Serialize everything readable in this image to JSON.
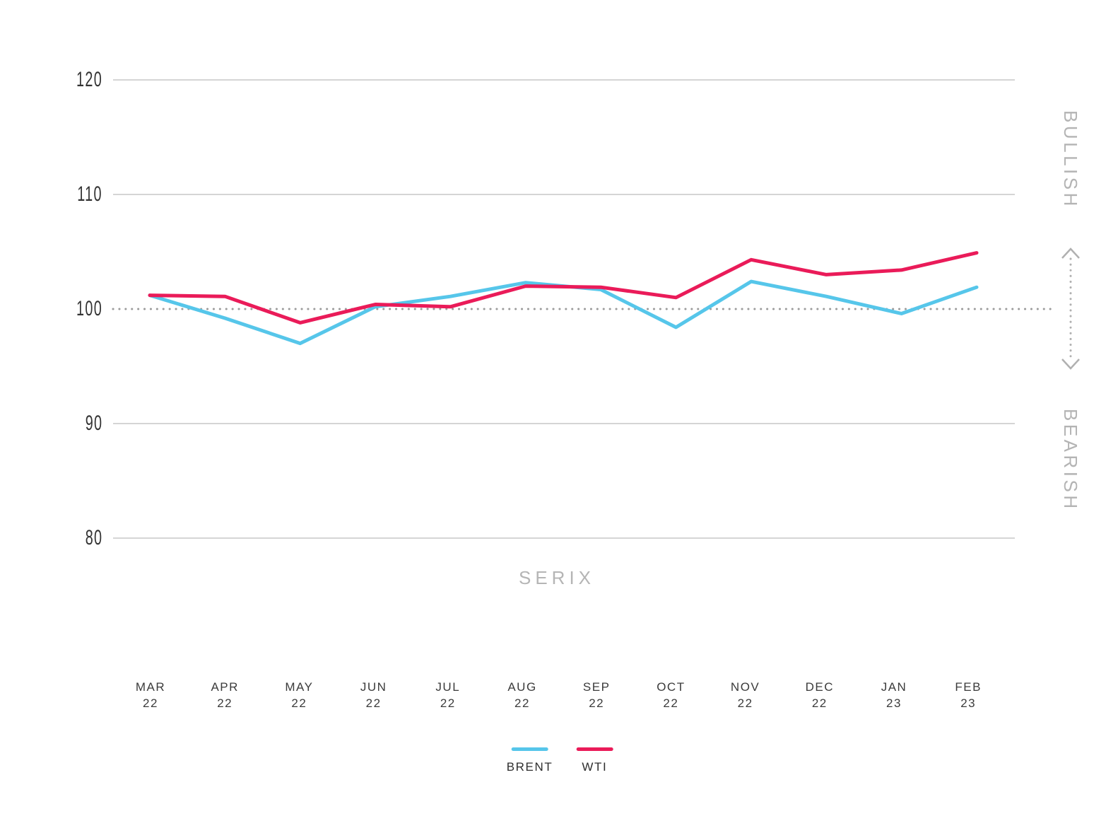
{
  "chart_data": {
    "type": "line",
    "title": "SERIX",
    "categories": [
      {
        "month": "MAR",
        "year": "22"
      },
      {
        "month": "APR",
        "year": "22"
      },
      {
        "month": "MAY",
        "year": "22"
      },
      {
        "month": "JUN",
        "year": "22"
      },
      {
        "month": "JUL",
        "year": "22"
      },
      {
        "month": "AUG",
        "year": "22"
      },
      {
        "month": "SEP",
        "year": "22"
      },
      {
        "month": "OCT",
        "year": "22"
      },
      {
        "month": "NOV",
        "year": "22"
      },
      {
        "month": "DEC",
        "year": "22"
      },
      {
        "month": "JAN",
        "year": "23"
      },
      {
        "month": "FEB",
        "year": "23"
      }
    ],
    "y_ticks": [
      120,
      110,
      100,
      90,
      80
    ],
    "ylim": [
      80,
      120
    ],
    "baseline_value": 100,
    "grid": true,
    "legend_position": "bottom",
    "series": [
      {
        "name": "BRENT",
        "color": "#56c6ea",
        "values": [
          101.2,
          99.2,
          97.0,
          100.2,
          101.1,
          102.3,
          101.7,
          98.4,
          102.4,
          101.1,
          99.6,
          101.9
        ]
      },
      {
        "name": "WTI",
        "color": "#ea1b59",
        "values": [
          101.2,
          101.1,
          98.8,
          100.4,
          100.2,
          102.0,
          101.9,
          101.0,
          104.3,
          103.0,
          103.4,
          104.9
        ]
      }
    ],
    "right_annotations": {
      "upper": "BULLISH",
      "lower": "BEARISH"
    }
  },
  "colors": {
    "grid": "#ababab",
    "baseline_dots": "#9b9b9b",
    "arrow": "#b0b0b0",
    "tick_text": "#333333",
    "axis_text": "#3b3b3b",
    "muted_text": "#b4b4b4",
    "legend_text": "#2e2e2e"
  }
}
